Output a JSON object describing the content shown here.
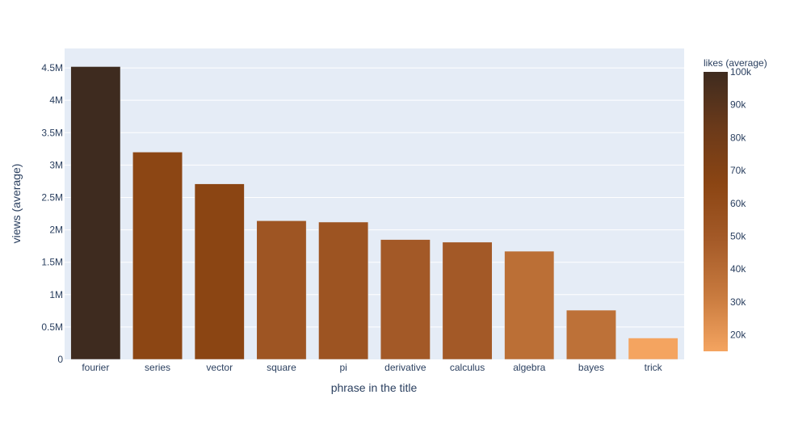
{
  "chart_data": {
    "type": "bar",
    "title": "",
    "xlabel": "phrase in the title",
    "ylabel": "views (average)",
    "categories": [
      "fourier",
      "series",
      "vector",
      "square",
      "pi",
      "derivative",
      "calculus",
      "algebra",
      "bayes",
      "trick"
    ],
    "values": [
      4520000,
      3200000,
      2710000,
      2140000,
      2120000,
      1850000,
      1810000,
      1670000,
      760000,
      330000
    ],
    "likes": [
      100000,
      65000,
      66000,
      53000,
      54000,
      50000,
      50000,
      38000,
      37000,
      15000
    ],
    "ylim": [
      0,
      4800000
    ],
    "yticks": [
      0,
      500000,
      1000000,
      1500000,
      2000000,
      2500000,
      3000000,
      3500000,
      4000000,
      4500000
    ],
    "ytick_labels": [
      "0",
      "0.5M",
      "1M",
      "1.5M",
      "2M",
      "2.5M",
      "3M",
      "3.5M",
      "4M",
      "4.5M"
    ],
    "grid": true,
    "colorbar": {
      "title": "likes (average)",
      "range": [
        15000,
        100000
      ],
      "ticks": [
        20000,
        30000,
        40000,
        50000,
        60000,
        70000,
        80000,
        90000,
        100000
      ],
      "tick_labels": [
        "20k",
        "30k",
        "40k",
        "50k",
        "60k",
        "70k",
        "80k",
        "90k",
        "100k"
      ],
      "colorscale": [
        "#f4a460",
        "#c87a3e",
        "#a45a28",
        "#8b4513",
        "#6b3a1a",
        "#3e2b1f"
      ]
    },
    "colors": {
      "plot_bg": "#e5ecf6",
      "grid": "#ffffff",
      "text": "#2a3f5f"
    }
  }
}
